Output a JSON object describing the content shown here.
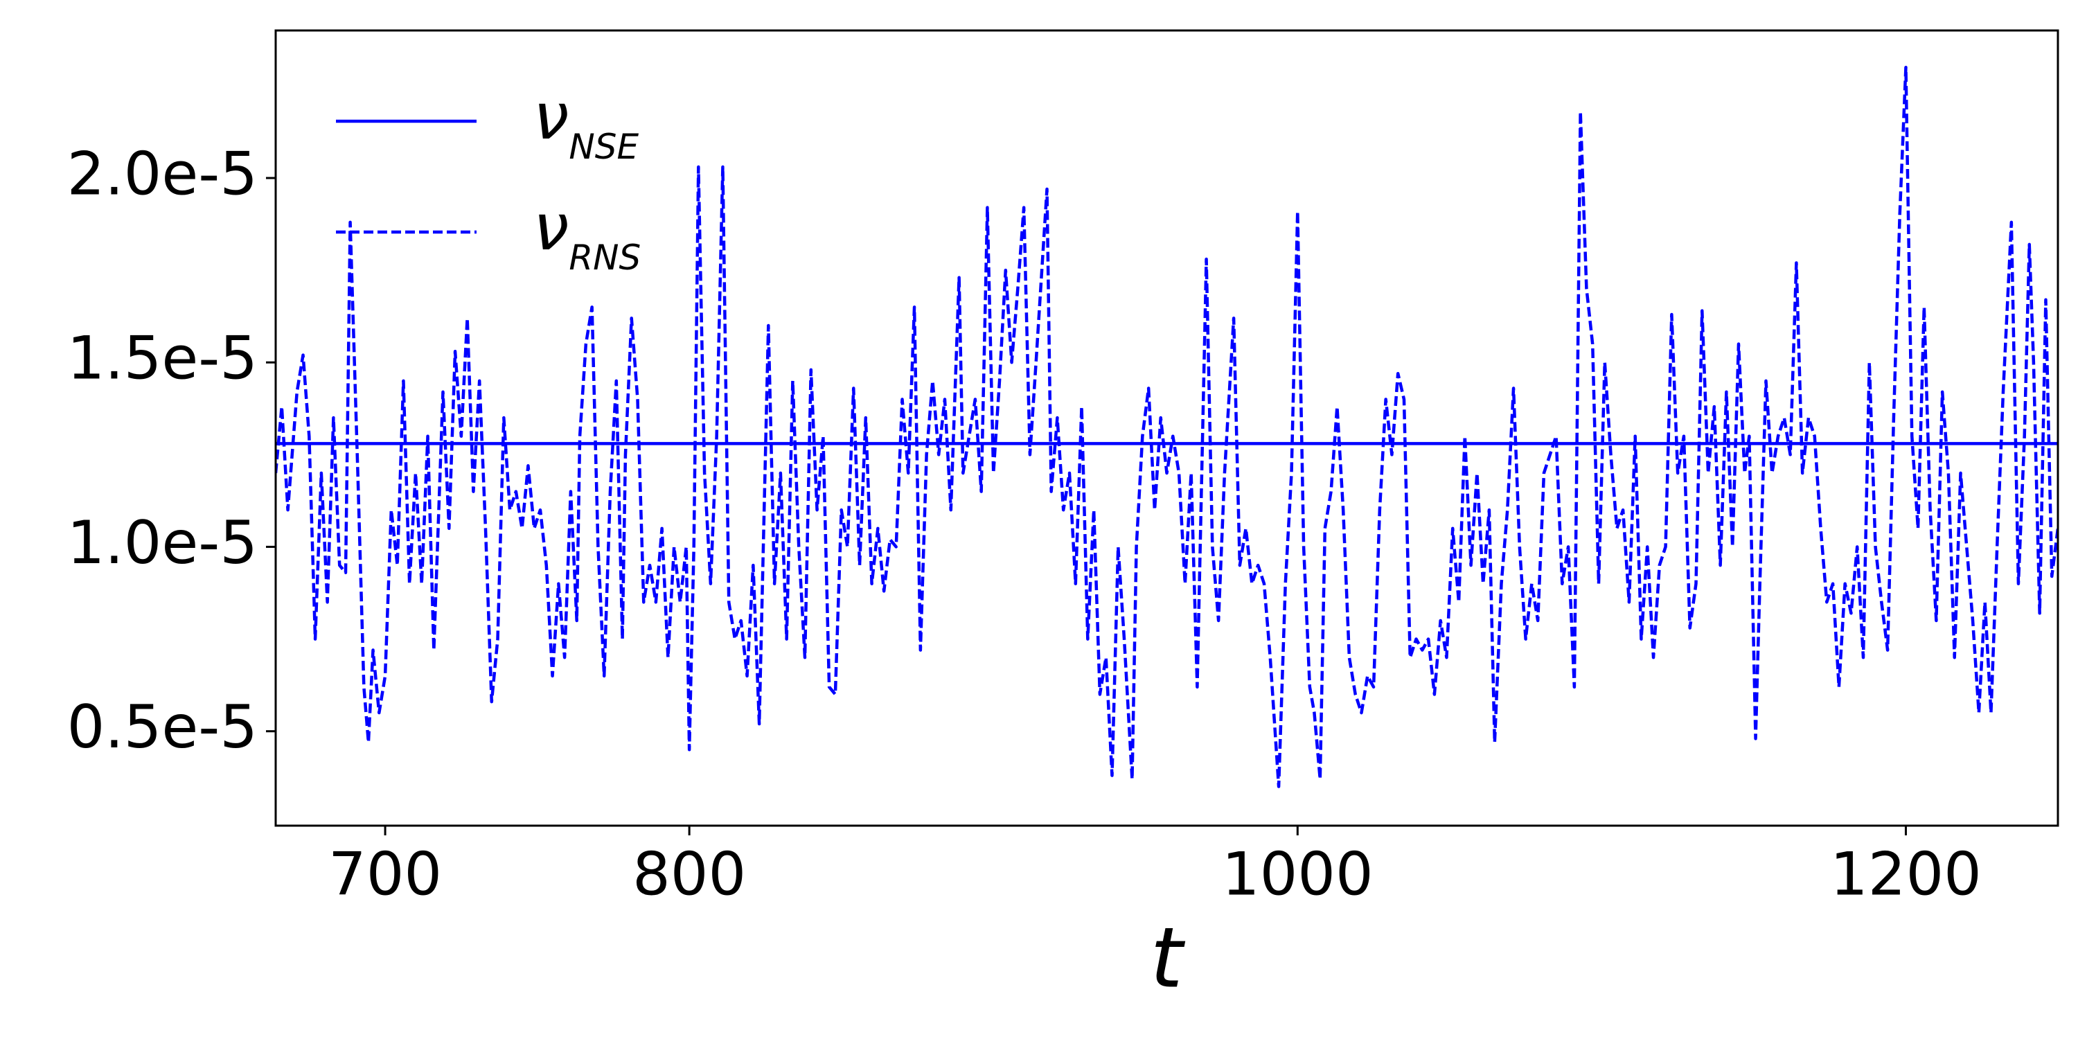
{
  "chart_data": {
    "type": "line",
    "x_label": "t",
    "xlim": [
      664,
      1250
    ],
    "ylim": [
      2.44e-06,
      2.4e-05
    ],
    "xticks": [
      700,
      800,
      1000,
      1200
    ],
    "yticks": [
      {
        "value": 5e-06,
        "label": "0.5e-5"
      },
      {
        "value": 1e-05,
        "label": "1.0e-5"
      },
      {
        "value": 1.5e-05,
        "label": "1.5e-5"
      },
      {
        "value": 2e-05,
        "label": "2.0e-5"
      }
    ],
    "legend": "upper left",
    "series": [
      {
        "name": "ν",
        "subscript": "NSE",
        "color": "#0000ff",
        "style": "solid",
        "x": [
          664,
          1250
        ],
        "values": [
          1.28e-05,
          1.28e-05
        ]
      },
      {
        "name": "ν",
        "subscript": "RNS",
        "color": "#0000ff",
        "style": "dashed",
        "x": [
          664,
          666,
          668,
          671,
          673,
          675,
          677,
          679,
          681,
          683,
          685,
          687,
          688.5,
          691,
          693,
          694.5,
          696,
          698,
          700,
          702,
          704,
          706,
          708,
          710,
          712,
          714,
          716,
          719,
          721,
          723,
          725,
          727,
          729,
          731,
          733,
          735,
          737,
          739,
          741,
          743,
          745,
          747,
          749,
          751,
          753,
          755,
          757,
          759,
          761,
          763,
          764,
          766,
          768,
          770,
          772,
          774,
          776,
          778,
          779,
          781,
          783,
          785,
          787,
          789,
          791,
          793,
          795,
          797,
          799,
          800,
          801.5,
          803,
          805,
          807,
          809,
          811,
          813,
          815,
          817,
          819,
          821,
          823,
          826,
          828,
          830,
          832,
          834,
          836,
          838,
          840,
          842,
          844,
          846,
          848,
          850,
          852,
          854,
          856,
          858,
          860,
          862,
          864,
          866,
          868,
          870,
          872,
          874,
          876,
          878,
          880,
          882,
          884,
          886,
          888.7,
          890,
          892,
          894,
          896,
          898,
          900,
          902,
          904,
          906,
          908,
          910,
          912,
          914,
          917.6,
          919,
          921,
          923,
          925,
          927,
          929,
          931,
          933,
          935,
          937,
          939,
          941,
          943,
          945.6,
          947,
          949,
          951,
          953,
          955,
          957,
          959,
          961,
          963,
          965,
          967,
          970,
          972,
          974,
          976,
          979,
          981,
          983,
          985,
          987,
          989,
          991,
          993.8,
          996,
          998,
          1000,
          1002,
          1004,
          1005.5,
          1007.4,
          1009,
          1011,
          1013,
          1015,
          1017,
          1019,
          1021,
          1023,
          1025,
          1027,
          1029,
          1031,
          1033,
          1035,
          1037,
          1039,
          1041,
          1043,
          1045,
          1047,
          1049,
          1051,
          1053,
          1055,
          1057,
          1059,
          1061,
          1063,
          1064.8,
          1067,
          1069,
          1071,
          1073,
          1075,
          1077,
          1079,
          1081,
          1083,
          1085,
          1087,
          1089,
          1091,
          1093,
          1095,
          1097,
          1099,
          1101,
          1103,
          1105,
          1107,
          1109,
          1111,
          1113,
          1115,
          1117,
          1119,
          1121,
          1123,
          1125,
          1127,
          1129,
          1131,
          1133,
          1135,
          1137,
          1139,
          1141,
          1143,
          1145,
          1147,
          1148.5,
          1150.6,
          1152,
          1154,
          1156,
          1158,
          1160,
          1162,
          1164,
          1166,
          1168,
          1170,
          1172,
          1174,
          1176,
          1178,
          1180,
          1182,
          1184,
          1186,
          1188,
          1190,
          1192,
          1194,
          1196,
          1198,
          1200,
          1202,
          1204,
          1206,
          1208,
          1210,
          1212,
          1214,
          1216,
          1218,
          1220,
          1222,
          1224,
          1226,
          1228,
          1230,
          1232,
          1234.7,
          1237,
          1239,
          1240.6,
          1242,
          1244,
          1246,
          1248,
          1250
        ],
        "values": [
          1.2e-05,
          1.38e-05,
          1.1e-05,
          1.42e-05,
          1.52e-05,
          1.3e-05,
          7.5e-06,
          1.2e-05,
          8.5e-06,
          1.35e-05,
          9.5e-06,
          9.3e-06,
          1.88e-05,
          1.2e-05,
          6.2e-06,
          4.7e-06,
          7.2e-06,
          5.5e-06,
          6.5e-06,
          1.1e-05,
          9.5e-06,
          1.45e-05,
          9e-06,
          1.2e-05,
          9e-06,
          1.3e-05,
          7.2e-06,
          1.42e-05,
          1.05e-05,
          1.53e-05,
          1.3e-05,
          1.62e-05,
          1.15e-05,
          1.45e-05,
          1.05e-05,
          5.8e-06,
          7.5e-06,
          1.35e-05,
          1.1e-05,
          1.15e-05,
          1.05e-05,
          1.22e-05,
          1.05e-05,
          1.1e-05,
          9.5e-06,
          6.5e-06,
          9e-06,
          7e-06,
          1.15e-05,
          8e-06,
          1.3e-05,
          1.55e-05,
          1.65e-05,
          1e-05,
          6.5e-06,
          1.15e-05,
          1.45e-05,
          7.5e-06,
          1.25e-05,
          1.62e-05,
          1.4e-05,
          8.5e-06,
          9.5e-06,
          8.5e-06,
          1.05e-05,
          7e-06,
          1e-05,
          8.5e-06,
          1e-05,
          4.5e-06,
          1e-05,
          2.03e-05,
          1.2e-05,
          9e-06,
          1.3e-05,
          2.03e-05,
          8.5e-06,
          7.5e-06,
          8e-06,
          6.5e-06,
          9.5e-06,
          5.2e-06,
          1.6e-05,
          9e-06,
          1.2e-05,
          7.5e-06,
          1.45e-05,
          1e-05,
          7e-06,
          1.48e-05,
          1.1e-05,
          1.3e-05,
          6.2e-06,
          6e-06,
          1.1e-05,
          1e-05,
          1.43e-05,
          9.5e-06,
          1.35e-05,
          9e-06,
          1.05e-05,
          8.8e-06,
          1.02e-05,
          1e-05,
          1.4e-05,
          1.2e-05,
          1.65e-05,
          7.2e-06,
          1.25e-05,
          1.45e-05,
          1.25e-05,
          1.4e-05,
          1.1e-05,
          1.73e-05,
          1.2e-05,
          1.3e-05,
          1.4e-05,
          1.15e-05,
          1.92e-05,
          1.2e-05,
          1.45e-05,
          1.75e-05,
          1.5e-05,
          1.7e-05,
          1.92e-05,
          1.25e-05,
          1.5e-05,
          1.97e-05,
          1.15e-05,
          1.35e-05,
          1.1e-05,
          1.2e-05,
          9e-06,
          1.38e-05,
          7.5e-06,
          1.1e-05,
          6e-06,
          7e-06,
          3.8e-06,
          1e-05,
          7.5e-06,
          3.7e-06,
          1e-05,
          1.3e-05,
          1.43e-05,
          1.1e-05,
          1.35e-05,
          1.2e-05,
          1.3e-05,
          1.2e-05,
          9e-06,
          1.2e-05,
          6.2e-06,
          1.78e-05,
          1e-05,
          8e-06,
          1.2e-05,
          1.62e-05,
          9.5e-06,
          1.05e-05,
          9e-06,
          9.5e-06,
          9e-06,
          7e-06,
          3.5e-06,
          9e-06,
          1.2e-05,
          1.91e-05,
          1e-05,
          6.2e-06,
          5.5e-06,
          3.7e-06,
          1.05e-05,
          1.15e-05,
          1.38e-05,
          1.1e-05,
          7e-06,
          6e-06,
          5.5e-06,
          6.5e-06,
          6.2e-06,
          1.1e-05,
          1.4e-05,
          1.25e-05,
          1.47e-05,
          1.4e-05,
          7e-06,
          7.5e-06,
          7.2e-06,
          7.5e-06,
          6e-06,
          8e-06,
          7e-06,
          1.05e-05,
          8.5e-06,
          1.3e-05,
          9.5e-06,
          1.2e-05,
          9e-06,
          1.1e-05,
          4.7e-06,
          9e-06,
          1.1e-05,
          1.43e-05,
          1e-05,
          7.5e-06,
          9e-06,
          8e-06,
          1.2e-05,
          1.25e-05,
          1.3e-05,
          9e-06,
          1e-05,
          6.2e-06,
          2.18e-05,
          1.7e-05,
          1.55e-05,
          9e-06,
          1.5e-05,
          1.25e-05,
          1.05e-05,
          1.1e-05,
          8.5e-06,
          1.3e-05,
          7.5e-06,
          1e-05,
          7e-06,
          9.5e-06,
          1e-05,
          1.63e-05,
          1.2e-05,
          1.3e-05,
          7.8e-06,
          9e-06,
          1.64e-05,
          1.2e-05,
          1.38e-05,
          9.5e-06,
          1.42e-05,
          1e-05,
          1.55e-05,
          1.2e-05,
          1.3e-05,
          4.8e-06,
          9e-06,
          1.45e-05,
          1.2e-05,
          1.3e-05,
          1.35e-05,
          1.25e-05,
          1.77e-05,
          1.2e-05,
          1.35e-05,
          1.3e-05,
          1.05e-05,
          8.5e-06,
          9e-06,
          6.2e-06,
          9e-06,
          8.2e-06,
          1e-05,
          7e-06,
          1.5e-05,
          1e-05,
          8.5e-06,
          7.2e-06,
          1.35e-05,
          1.9e-05,
          2.3e-05,
          1.3e-05,
          1.05e-05,
          1.65e-05,
          1.1e-05,
          8e-06,
          1.42e-05,
          1.2e-05,
          7e-06,
          1.2e-05,
          1e-05,
          8e-06,
          5.5e-06,
          8.5e-06,
          5.5e-06,
          1e-05,
          1.42e-05,
          1.88e-05,
          9e-06,
          1.3e-05,
          1.82e-05,
          1.5e-05,
          8.2e-06,
          1.67e-05,
          9.2e-06,
          1.05e-05
        ]
      }
    ]
  }
}
